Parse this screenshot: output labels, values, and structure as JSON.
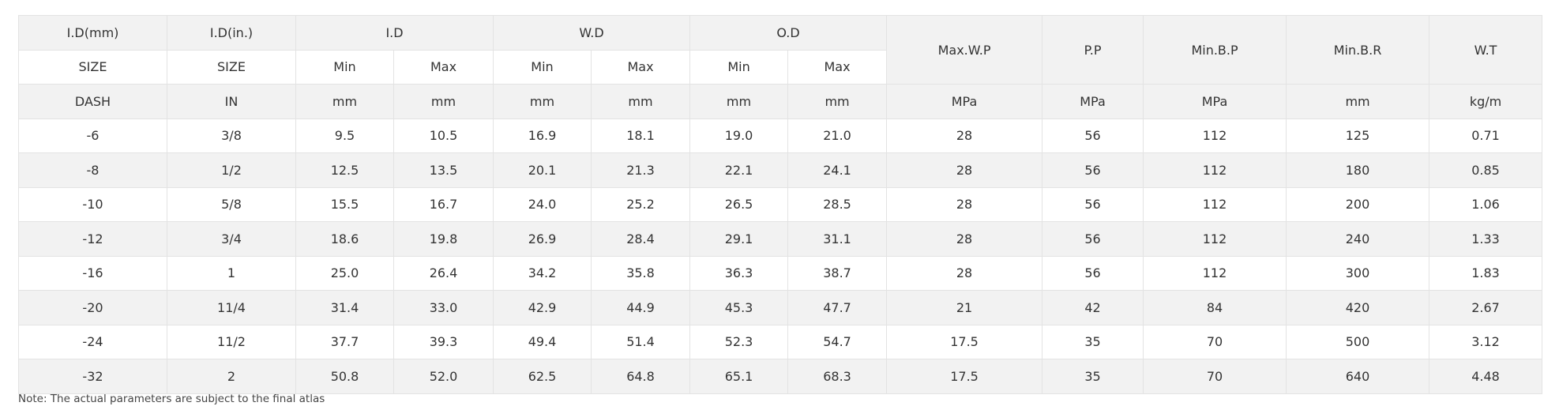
{
  "table": {
    "header": [
      [
        "I.D(mm)",
        "I.D(in.)",
        "I.D",
        "W.D",
        "O.D",
        "Max.W.P",
        "P.P",
        "Min.B.P",
        "Min.B.R",
        "W.T"
      ],
      [
        "SIZE",
        "SIZE",
        "Min",
        "Max",
        "Min",
        "Max",
        "Min",
        "Max"
      ],
      [
        "DASH",
        "IN",
        "mm",
        "mm",
        "mm",
        "mm",
        "mm",
        "mm",
        "MPa",
        "MPa",
        "MPa",
        "mm",
        "kg/m"
      ]
    ],
    "rows": [
      [
        "-6",
        "3/8",
        "9.5",
        "10.5",
        "16.9",
        "18.1",
        "19.0",
        "21.0",
        "28",
        "56",
        "112",
        "125",
        "0.71"
      ],
      [
        "-8",
        "1/2",
        "12.5",
        "13.5",
        "20.1",
        "21.3",
        "22.1",
        "24.1",
        "28",
        "56",
        "112",
        "180",
        "0.85"
      ],
      [
        "-10",
        "5/8",
        "15.5",
        "16.7",
        "24.0",
        "25.2",
        "26.5",
        "28.5",
        "28",
        "56",
        "112",
        "200",
        "1.06"
      ],
      [
        "-12",
        "3/4",
        "18.6",
        "19.8",
        "26.9",
        "28.4",
        "29.1",
        "31.1",
        "28",
        "56",
        "112",
        "240",
        "1.33"
      ],
      [
        "-16",
        "1",
        "25.0",
        "26.4",
        "34.2",
        "35.8",
        "36.3",
        "38.7",
        "28",
        "56",
        "112",
        "300",
        "1.83"
      ],
      [
        "-20",
        "11/4",
        "31.4",
        "33.0",
        "42.9",
        "44.9",
        "45.3",
        "47.7",
        "21",
        "42",
        "84",
        "420",
        "2.67"
      ],
      [
        "-24",
        "11/2",
        "37.7",
        "39.3",
        "49.4",
        "51.4",
        "52.3",
        "54.7",
        "17.5",
        "35",
        "70",
        "500",
        "3.12"
      ],
      [
        "-32",
        "2",
        "50.8",
        "52.0",
        "62.5",
        "64.8",
        "65.1",
        "68.3",
        "17.5",
        "35",
        "70",
        "640",
        "4.48"
      ]
    ]
  },
  "note": "Note: The actual parameters are subject to the final atlas"
}
